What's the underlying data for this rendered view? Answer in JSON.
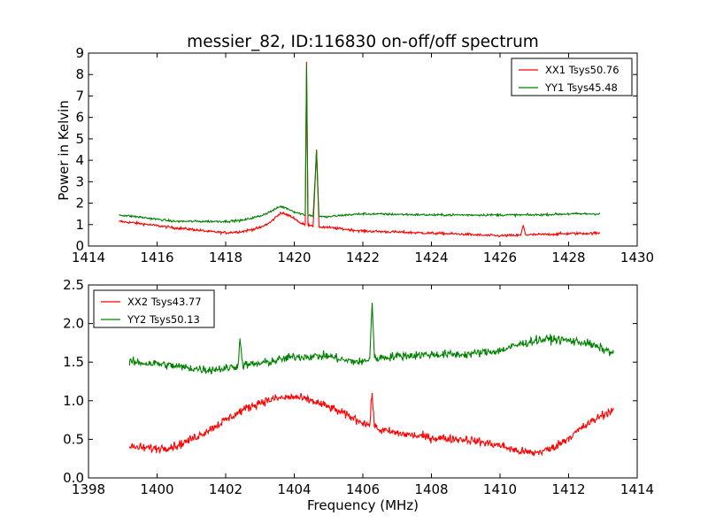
{
  "figure": {
    "title": "messier_82, ID:116830 on-off/off spectrum",
    "xlabel": "Frequency (MHz)",
    "ylabel": "Power in Kelvin"
  },
  "chart_data": [
    {
      "type": "line",
      "ylabel": "Power in Kelvin",
      "xlim": [
        1414,
        1430
      ],
      "ylim": [
        0,
        9
      ],
      "xticks": [
        "1414",
        "1416",
        "1418",
        "1420",
        "1422",
        "1424",
        "1426",
        "1428",
        "1430"
      ],
      "yticks": [
        "0",
        "1",
        "2",
        "3",
        "4",
        "5",
        "6",
        "7",
        "8",
        "9"
      ],
      "legend_position": "top-right",
      "grid": false,
      "series": [
        {
          "name": "XX1 Tsys50.76",
          "color": "#ff0000",
          "noise": 0.06,
          "points": [
            [
              1414.9,
              1.15
            ],
            [
              1415.5,
              1.05
            ],
            [
              1416.0,
              0.95
            ],
            [
              1416.5,
              0.85
            ],
            [
              1417.0,
              0.78
            ],
            [
              1417.5,
              0.68
            ],
            [
              1418.0,
              0.62
            ],
            [
              1418.5,
              0.68
            ],
            [
              1419.0,
              0.85
            ],
            [
              1419.3,
              1.1
            ],
            [
              1419.6,
              1.55
            ],
            [
              1419.8,
              1.45
            ],
            [
              1420.0,
              1.3
            ],
            [
              1420.2,
              1.05
            ],
            [
              1420.32,
              1.0
            ],
            [
              1420.36,
              8.6
            ],
            [
              1420.4,
              1.0
            ],
            [
              1420.55,
              0.95
            ],
            [
              1420.65,
              4.5
            ],
            [
              1420.72,
              0.9
            ],
            [
              1420.9,
              0.88
            ],
            [
              1421.5,
              0.78
            ],
            [
              1422.0,
              0.7
            ],
            [
              1423.0,
              0.65
            ],
            [
              1424.0,
              0.6
            ],
            [
              1425.0,
              0.55
            ],
            [
              1425.5,
              0.5
            ],
            [
              1426.0,
              0.48
            ],
            [
              1426.6,
              0.5
            ],
            [
              1426.68,
              0.95
            ],
            [
              1426.75,
              0.52
            ],
            [
              1427.5,
              0.55
            ],
            [
              1428.0,
              0.58
            ],
            [
              1428.9,
              0.6
            ]
          ]
        },
        {
          "name": "YY1 Tsys45.48",
          "color": "#008000",
          "noise": 0.05,
          "points": [
            [
              1414.9,
              1.45
            ],
            [
              1415.5,
              1.35
            ],
            [
              1416.0,
              1.25
            ],
            [
              1416.5,
              1.15
            ],
            [
              1417.0,
              1.15
            ],
            [
              1417.5,
              1.15
            ],
            [
              1418.0,
              1.15
            ],
            [
              1418.5,
              1.2
            ],
            [
              1419.0,
              1.4
            ],
            [
              1419.3,
              1.6
            ],
            [
              1419.6,
              1.85
            ],
            [
              1419.8,
              1.75
            ],
            [
              1420.0,
              1.6
            ],
            [
              1420.2,
              1.5
            ],
            [
              1420.32,
              1.45
            ],
            [
              1420.36,
              8.45
            ],
            [
              1420.4,
              1.45
            ],
            [
              1420.55,
              1.4
            ],
            [
              1420.65,
              4.45
            ],
            [
              1420.72,
              1.4
            ],
            [
              1420.9,
              1.35
            ],
            [
              1421.5,
              1.45
            ],
            [
              1422.0,
              1.5
            ],
            [
              1423.0,
              1.48
            ],
            [
              1424.0,
              1.45
            ],
            [
              1425.0,
              1.45
            ],
            [
              1426.0,
              1.45
            ],
            [
              1427.0,
              1.45
            ],
            [
              1428.0,
              1.5
            ],
            [
              1428.9,
              1.5
            ]
          ]
        }
      ]
    },
    {
      "type": "line",
      "xlabel": "Frequency (MHz)",
      "xlim": [
        1398,
        1414
      ],
      "ylim": [
        0,
        2.5
      ],
      "xticks": [
        "1398",
        "1400",
        "1402",
        "1404",
        "1406",
        "1408",
        "1410",
        "1412",
        "1414"
      ],
      "yticks": [
        "0.0",
        "0.5",
        "1.0",
        "1.5",
        "2.0",
        "2.5"
      ],
      "legend_position": "top-left",
      "grid": false,
      "series": [
        {
          "name": "XX2 Tsys43.77",
          "color": "#ff0000",
          "noise": 0.055,
          "points": [
            [
              1399.2,
              0.4
            ],
            [
              1400.0,
              0.38
            ],
            [
              1400.6,
              0.42
            ],
            [
              1401.0,
              0.5
            ],
            [
              1401.5,
              0.62
            ],
            [
              1402.0,
              0.75
            ],
            [
              1402.5,
              0.88
            ],
            [
              1403.0,
              0.98
            ],
            [
              1403.5,
              1.03
            ],
            [
              1404.0,
              1.05
            ],
            [
              1404.5,
              1.0
            ],
            [
              1405.0,
              0.92
            ],
            [
              1405.5,
              0.82
            ],
            [
              1406.0,
              0.72
            ],
            [
              1406.2,
              0.68
            ],
            [
              1406.27,
              1.1
            ],
            [
              1406.34,
              0.66
            ],
            [
              1406.5,
              0.62
            ],
            [
              1407.0,
              0.58
            ],
            [
              1407.5,
              0.55
            ],
            [
              1408.0,
              0.52
            ],
            [
              1409.0,
              0.5
            ],
            [
              1410.0,
              0.42
            ],
            [
              1410.5,
              0.35
            ],
            [
              1411.0,
              0.32
            ],
            [
              1411.5,
              0.38
            ],
            [
              1412.0,
              0.52
            ],
            [
              1412.5,
              0.68
            ],
            [
              1413.0,
              0.82
            ],
            [
              1413.3,
              0.88
            ]
          ]
        },
        {
          "name": "YY2 Tsys50.13",
          "color": "#008000",
          "noise": 0.055,
          "points": [
            [
              1399.2,
              1.5
            ],
            [
              1400.0,
              1.48
            ],
            [
              1401.0,
              1.42
            ],
            [
              1401.5,
              1.4
            ],
            [
              1402.0,
              1.42
            ],
            [
              1402.35,
              1.45
            ],
            [
              1402.42,
              1.78
            ],
            [
              1402.5,
              1.46
            ],
            [
              1403.0,
              1.48
            ],
            [
              1404.0,
              1.57
            ],
            [
              1405.0,
              1.58
            ],
            [
              1405.5,
              1.52
            ],
            [
              1406.0,
              1.5
            ],
            [
              1406.2,
              1.55
            ],
            [
              1406.27,
              2.27
            ],
            [
              1406.34,
              1.55
            ],
            [
              1407.0,
              1.58
            ],
            [
              1408.0,
              1.6
            ],
            [
              1409.0,
              1.6
            ],
            [
              1410.0,
              1.65
            ],
            [
              1410.5,
              1.72
            ],
            [
              1411.0,
              1.78
            ],
            [
              1411.5,
              1.8
            ],
            [
              1412.0,
              1.78
            ],
            [
              1412.5,
              1.75
            ],
            [
              1413.3,
              1.62
            ]
          ]
        }
      ]
    }
  ]
}
